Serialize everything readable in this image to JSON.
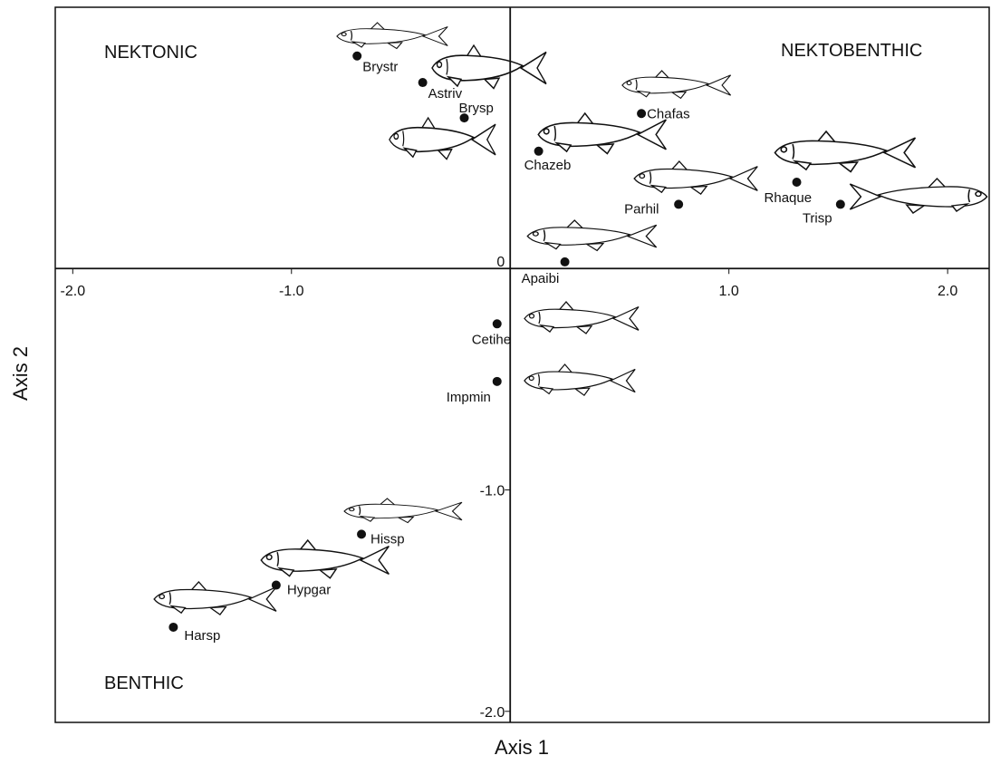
{
  "chart_data": {
    "type": "scatter",
    "x_label": "Axis 1",
    "y_label": "Axis 2",
    "annotations": [
      "NEKTONIC",
      "NEKTOBENTHIC",
      "BENTHIC"
    ],
    "labels": [
      "Brystr",
      "Astriv",
      "Brysp",
      "Chafas",
      "Chazeb",
      "Rhaque",
      "Parhil",
      "Trisp",
      "Apaibi",
      "Cetihe",
      "Impmin",
      "Hissp",
      "Hypgar",
      "Harsp"
    ],
    "x": [
      -0.7,
      -0.4,
      -0.21,
      0.6,
      0.13,
      1.31,
      0.77,
      1.51,
      0.25,
      -0.06,
      -0.06,
      -0.68,
      -1.07,
      -1.54
    ],
    "y": [
      0.96,
      0.84,
      0.68,
      0.7,
      0.53,
      0.39,
      0.29,
      0.29,
      0.03,
      -0.25,
      -0.51,
      -1.2,
      -1.43,
      -1.62
    ],
    "color": "#111111",
    "xlim": [
      -2.08,
      2.19
    ],
    "ylim": [
      -2.05,
      1.18
    ],
    "xticks": [
      {
        "value": -2,
        "label": "-2.0"
      },
      {
        "value": -1,
        "label": "-1.0"
      },
      {
        "value": 1,
        "label": "1.0"
      },
      {
        "value": 2,
        "label": "2.0"
      }
    ],
    "yticks": [
      0,
      {
        "value": -1,
        "label": "-1.0"
      },
      {
        "value": -2,
        "label": "-2.0"
      }
    ]
  }
}
